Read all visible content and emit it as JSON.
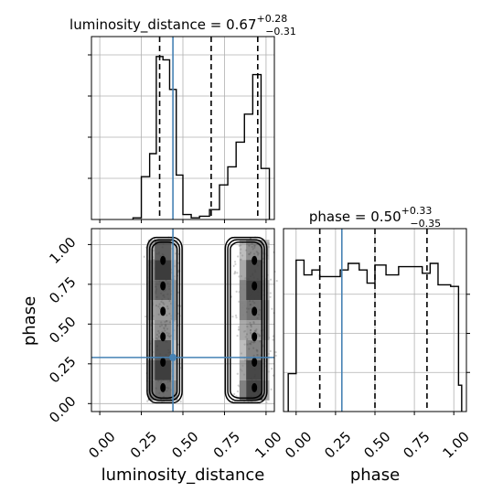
{
  "chart_data": {
    "type": "corner",
    "parameters": [
      "luminosity_distance",
      "phase"
    ],
    "colors": {
      "truth": "#4682b4",
      "hist": "#000000",
      "grid": "#b0b0b0",
      "samples": "#9a9a9a"
    },
    "luminosity_distance_hist": {
      "title_main": "luminosity_distance = 0.67",
      "title_sup": "+0.28",
      "title_sub": "−0.31",
      "median": 0.67,
      "quantiles": [
        0.36,
        0.67,
        0.95
      ],
      "truth": 0.44,
      "range": [
        -0.05,
        1.05
      ],
      "bins": [
        {
          "x0": 0.2,
          "x1": 0.25,
          "v": 0.01
        },
        {
          "x0": 0.25,
          "x1": 0.3,
          "v": 0.26
        },
        {
          "x0": 0.3,
          "x1": 0.34,
          "v": 0.4
        },
        {
          "x0": 0.34,
          "x1": 0.38,
          "v": 0.99
        },
        {
          "x0": 0.38,
          "x1": 0.42,
          "v": 0.97
        },
        {
          "x0": 0.42,
          "x1": 0.46,
          "v": 0.79
        },
        {
          "x0": 0.46,
          "x1": 0.5,
          "v": 0.27
        },
        {
          "x0": 0.5,
          "x1": 0.55,
          "v": 0.03
        },
        {
          "x0": 0.55,
          "x1": 0.6,
          "v": 0.01
        },
        {
          "x0": 0.6,
          "x1": 0.66,
          "v": 0.02
        },
        {
          "x0": 0.66,
          "x1": 0.72,
          "v": 0.06
        },
        {
          "x0": 0.72,
          "x1": 0.77,
          "v": 0.21
        },
        {
          "x0": 0.77,
          "x1": 0.82,
          "v": 0.32
        },
        {
          "x0": 0.82,
          "x1": 0.87,
          "v": 0.47
        },
        {
          "x0": 0.87,
          "x1": 0.92,
          "v": 0.64
        },
        {
          "x0": 0.92,
          "x1": 0.97,
          "v": 0.88
        },
        {
          "x0": 0.97,
          "x1": 1.02,
          "v": 0.31
        }
      ]
    },
    "phase_hist": {
      "title_main": "phase = 0.50",
      "title_sup": "+0.33",
      "title_sub": "−0.35",
      "median": 0.5,
      "quantiles": [
        0.15,
        0.5,
        0.83
      ],
      "truth": 0.29,
      "range": [
        -0.08,
        1.08
      ],
      "bins": [
        {
          "x0": -0.05,
          "x1": 0.0,
          "v": 0.23
        },
        {
          "x0": 0.0,
          "x1": 0.05,
          "v": 0.92
        },
        {
          "x0": 0.05,
          "x1": 0.1,
          "v": 0.83
        },
        {
          "x0": 0.1,
          "x1": 0.15,
          "v": 0.86
        },
        {
          "x0": 0.15,
          "x1": 0.2,
          "v": 0.82
        },
        {
          "x0": 0.2,
          "x1": 0.28,
          "v": 0.82
        },
        {
          "x0": 0.28,
          "x1": 0.33,
          "v": 0.86
        },
        {
          "x0": 0.33,
          "x1": 0.4,
          "v": 0.9
        },
        {
          "x0": 0.4,
          "x1": 0.45,
          "v": 0.86
        },
        {
          "x0": 0.45,
          "x1": 0.5,
          "v": 0.78
        },
        {
          "x0": 0.5,
          "x1": 0.57,
          "v": 0.89
        },
        {
          "x0": 0.57,
          "x1": 0.65,
          "v": 0.83
        },
        {
          "x0": 0.65,
          "x1": 0.72,
          "v": 0.88
        },
        {
          "x0": 0.72,
          "x1": 0.8,
          "v": 0.88
        },
        {
          "x0": 0.8,
          "x1": 0.85,
          "v": 0.84
        },
        {
          "x0": 0.85,
          "x1": 0.9,
          "v": 0.9
        },
        {
          "x0": 0.9,
          "x1": 0.98,
          "v": 0.77
        },
        {
          "x0": 0.98,
          "x1": 1.03,
          "v": 0.76
        },
        {
          "x0": 1.03,
          "x1": 1.05,
          "v": 0.16
        }
      ]
    },
    "joint": {
      "xlabel": "luminosity_distance",
      "ylabel": "phase",
      "xlim": [
        -0.05,
        1.05
      ],
      "ylim": [
        -0.05,
        1.1
      ],
      "x_ticks": [
        0.0,
        0.25,
        0.5,
        0.75,
        1.0
      ],
      "x_tick_labels": [
        "0.00",
        "0.25",
        "0.50",
        "0.75",
        "1.00"
      ],
      "y_ticks": [
        0.0,
        0.25,
        0.5,
        0.75,
        1.0
      ],
      "y_tick_labels": [
        "0.00",
        "0.25",
        "0.50",
        "0.75",
        "1.00"
      ],
      "truth": [
        0.44,
        0.29
      ],
      "modes": [
        {
          "x0": 0.28,
          "x1": 0.5,
          "y0": 0.0,
          "y1": 1.05,
          "cx": 0.38
        },
        {
          "x0": 0.75,
          "x1": 1.01,
          "y0": 0.0,
          "y1": 1.05,
          "cx": 0.93
        }
      ]
    },
    "phase_axis": {
      "xlabel": "phase",
      "x_ticks": [
        0.0,
        0.25,
        0.5,
        0.75,
        1.0
      ],
      "x_tick_labels": [
        "0.00",
        "0.25",
        "0.50",
        "0.75",
        "1.00"
      ]
    },
    "grid": true
  }
}
